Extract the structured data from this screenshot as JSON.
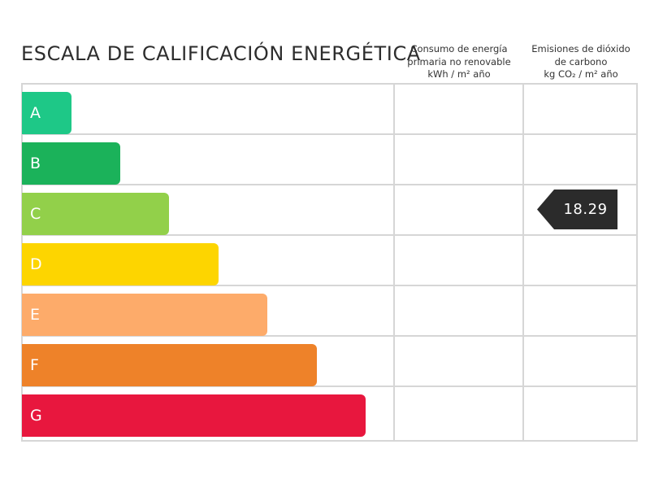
{
  "title": "ESCALA DE CALIFICACIÓN ENERGÉTICA",
  "columns": {
    "consumo": {
      "line1": "Consumo de energía",
      "line2": "primaria no renovable",
      "line3": "kWh / m² año"
    },
    "emisiones": {
      "line1": "Emisiones de dióxido",
      "line2": "de carbono",
      "line3": "kg CO₂ / m² año"
    }
  },
  "ratings": [
    {
      "label": "A",
      "color": "#1ec887"
    },
    {
      "label": "B",
      "color": "#1bb25a"
    },
    {
      "label": "C",
      "color": "#92d04a"
    },
    {
      "label": "D",
      "color": "#fdd500"
    },
    {
      "label": "E",
      "color": "#fdab6a"
    },
    {
      "label": "F",
      "color": "#ee8229"
    },
    {
      "label": "G",
      "color": "#e8173e"
    }
  ],
  "emissions_indicator": {
    "rating": "C",
    "value": "18.29",
    "color": "#2b2b2b"
  }
}
